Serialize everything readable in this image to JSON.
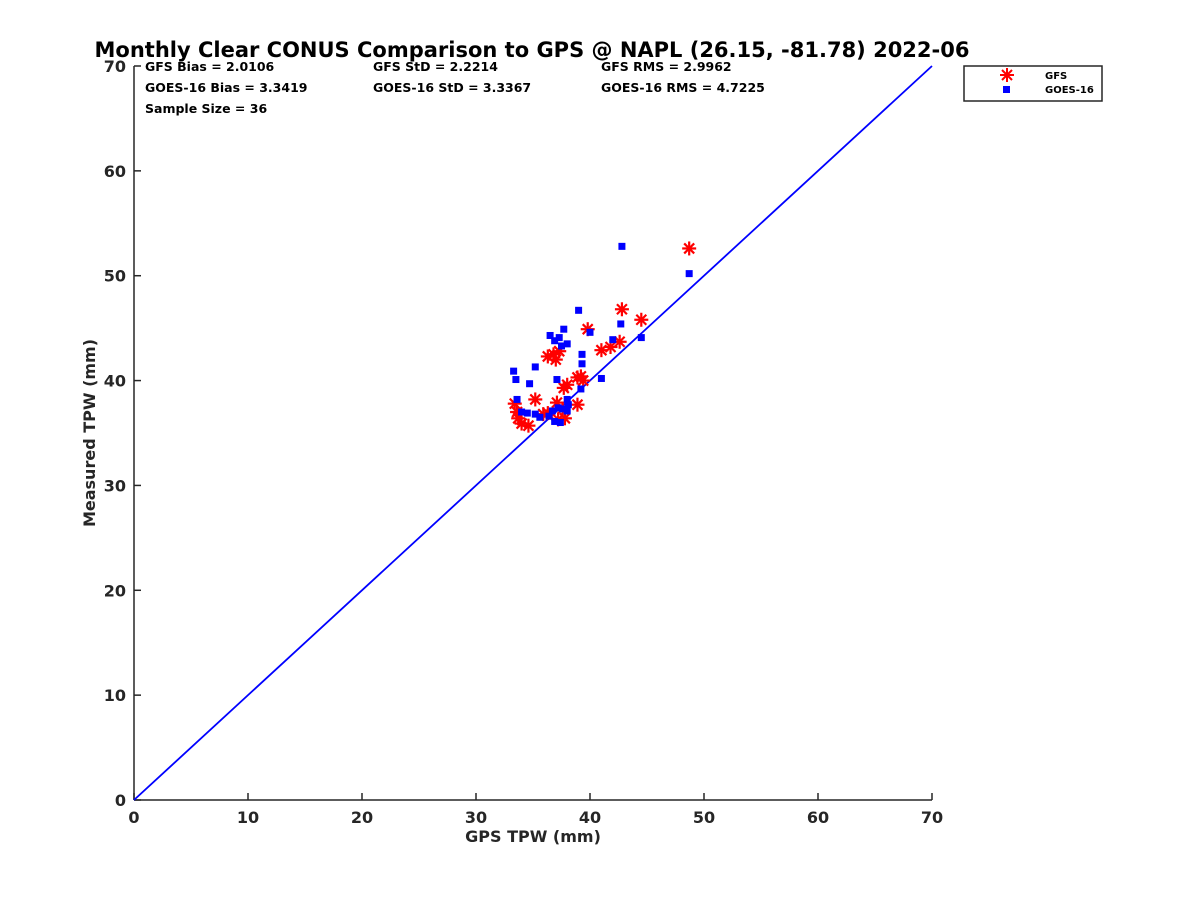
{
  "chart_data": {
    "type": "scatter",
    "title": "Monthly Clear CONUS Comparison to GPS @ NAPL (26.15, -81.78) 2022-06",
    "xlabel": "GPS TPW (mm)",
    "ylabel": "Measured TPW (mm)",
    "xlim": [
      0,
      70
    ],
    "ylim": [
      0,
      70
    ],
    "xticks": [
      "0",
      "10",
      "20",
      "30",
      "40",
      "50",
      "60",
      "70"
    ],
    "yticks": [
      "0",
      "10",
      "20",
      "30",
      "40",
      "50",
      "60",
      "70"
    ],
    "grid": false,
    "legend_position": "outside-top-right",
    "reference_line": {
      "x": [
        0,
        70
      ],
      "y": [
        0,
        70
      ],
      "color": "#0000ff"
    },
    "stats": {
      "gfs_bias": "GFS Bias = 2.0106",
      "goes_bias": "GOES-16 Bias = 3.3419",
      "sample_size": "Sample Size = 36",
      "gfs_std": "GFS StD = 2.2214",
      "goes_std": "GOES-16 StD = 3.3367",
      "gfs_rms": "GFS RMS = 2.9962",
      "goes_rms": "GOES-16 RMS = 4.7225"
    },
    "series": [
      {
        "name": "GFS",
        "marker": "asterisk",
        "color": "#ff0000",
        "points": [
          [
            48.7,
            52.6
          ],
          [
            42.8,
            46.8
          ],
          [
            44.5,
            45.8
          ],
          [
            39.8,
            44.9
          ],
          [
            42.6,
            43.7
          ],
          [
            41.0,
            42.9
          ],
          [
            41.8,
            43.2
          ],
          [
            36.3,
            42.3
          ],
          [
            36.8,
            42.5
          ],
          [
            37.0,
            42.0
          ],
          [
            37.3,
            42.8
          ],
          [
            39.2,
            40.4
          ],
          [
            39.4,
            40.0
          ],
          [
            38.9,
            40.3
          ],
          [
            38.0,
            39.6
          ],
          [
            37.7,
            39.3
          ],
          [
            38.9,
            37.7
          ],
          [
            37.6,
            37.3
          ],
          [
            37.1,
            37.9
          ],
          [
            35.2,
            38.2
          ],
          [
            33.4,
            37.8
          ],
          [
            33.6,
            37.0
          ],
          [
            33.7,
            36.4
          ],
          [
            34.0,
            35.9
          ],
          [
            34.6,
            35.7
          ],
          [
            35.9,
            36.8
          ],
          [
            36.3,
            36.9
          ],
          [
            37.2,
            36.3
          ],
          [
            37.8,
            36.4
          ]
        ]
      },
      {
        "name": "GOES-16",
        "marker": "square",
        "color": "#0000ff",
        "points": [
          [
            42.8,
            52.8
          ],
          [
            48.7,
            50.2
          ],
          [
            39.0,
            46.7
          ],
          [
            40.0,
            44.6
          ],
          [
            37.7,
            44.9
          ],
          [
            36.5,
            44.3
          ],
          [
            36.9,
            43.8
          ],
          [
            37.3,
            44.1
          ],
          [
            37.5,
            43.3
          ],
          [
            38.0,
            43.5
          ],
          [
            42.7,
            45.4
          ],
          [
            44.5,
            44.1
          ],
          [
            42.0,
            43.9
          ],
          [
            39.3,
            42.5
          ],
          [
            39.3,
            41.6
          ],
          [
            35.2,
            41.3
          ],
          [
            33.3,
            40.9
          ],
          [
            33.5,
            40.1
          ],
          [
            34.7,
            39.7
          ],
          [
            37.1,
            40.1
          ],
          [
            41.0,
            40.2
          ],
          [
            39.2,
            39.2
          ],
          [
            38.0,
            38.2
          ],
          [
            33.6,
            38.2
          ],
          [
            34.0,
            37.0
          ],
          [
            34.5,
            36.9
          ],
          [
            35.2,
            36.8
          ],
          [
            35.6,
            36.5
          ],
          [
            36.4,
            36.6
          ],
          [
            36.9,
            36.1
          ],
          [
            37.4,
            36.0
          ],
          [
            37.6,
            37.3
          ],
          [
            38.1,
            37.7
          ],
          [
            38.0,
            37.1
          ],
          [
            36.7,
            37.1
          ],
          [
            37.2,
            37.4
          ]
        ]
      }
    ]
  }
}
